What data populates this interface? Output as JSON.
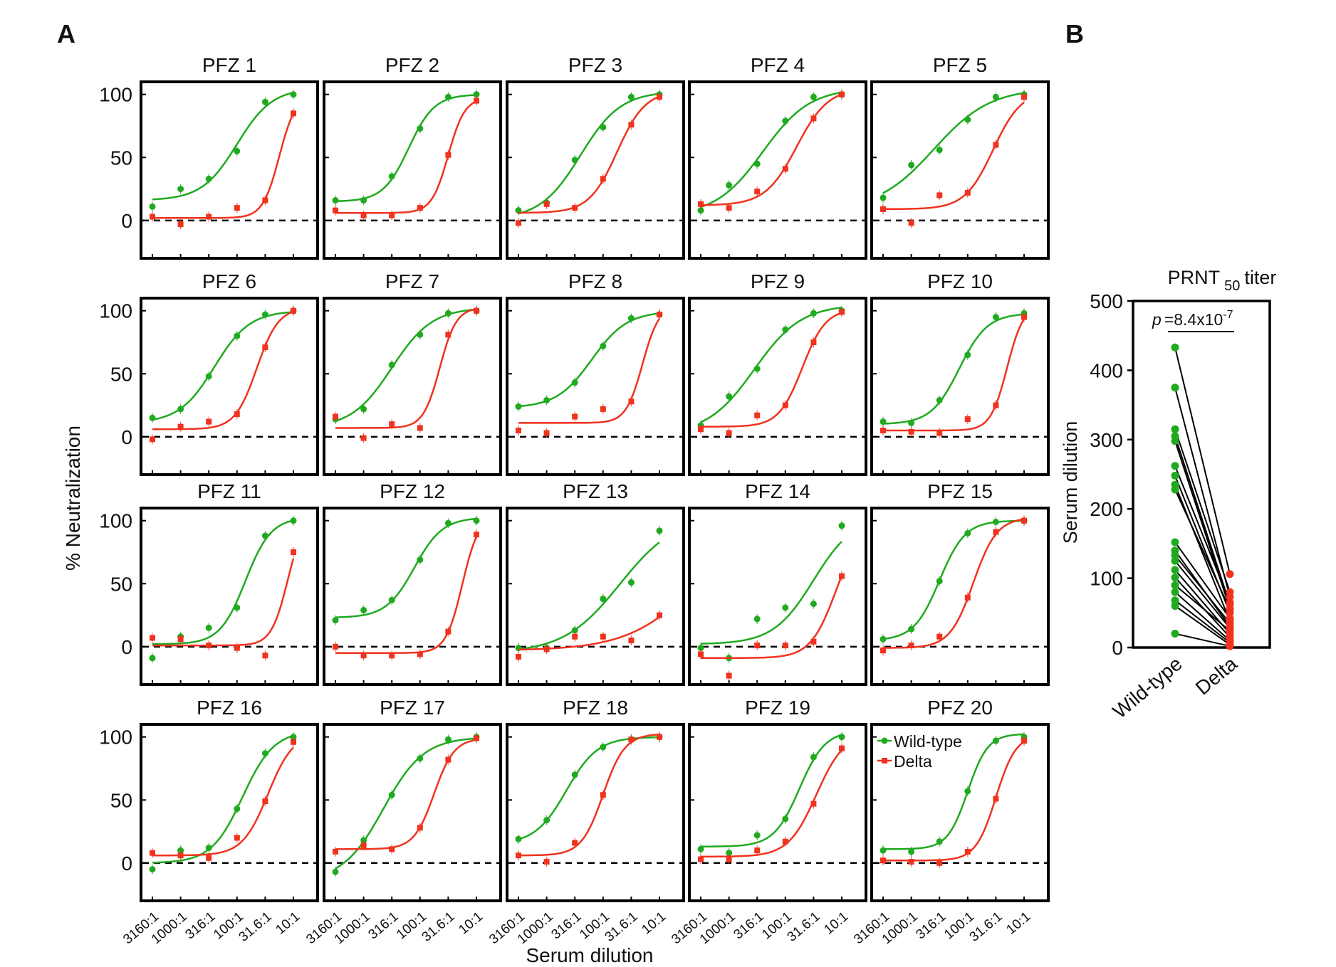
{
  "panel_labels": {
    "a": "A",
    "b": "B"
  },
  "colors": {
    "wild_type": "#1faa1f",
    "delta": "#f0321e",
    "axis": "#000000"
  },
  "legend": {
    "wild_type": "Wild-type",
    "delta": "Delta"
  },
  "chart_data": [
    {
      "type": "scatter",
      "panel": "A",
      "ylabel": "% Neutralization",
      "xlabel": "Serum dilution",
      "x_tick_labels": [
        "3160:1",
        "1000:1",
        "316:1",
        "100:1",
        "31.6:1",
        "10:1"
      ],
      "y_ticks": [
        0,
        50,
        100
      ],
      "ylim": [
        -30,
        110
      ],
      "x_scale": "log reciprocal dilution",
      "reference_line": {
        "y": 0,
        "style": "dashed"
      },
      "series_names": [
        "Wild-type",
        "Delta"
      ],
      "subplots": [
        {
          "title": "PFZ 1",
          "wild_type": [
            11,
            25,
            33,
            55,
            94,
            100
          ],
          "delta": [
            3,
            -3,
            3,
            10,
            16,
            85
          ]
        },
        {
          "title": "PFZ 2",
          "wild_type": [
            16,
            16,
            35,
            73,
            98,
            100
          ],
          "delta": [
            8,
            4,
            4,
            10,
            52,
            95
          ]
        },
        {
          "title": "PFZ 3",
          "wild_type": [
            8,
            14,
            48,
            74,
            98,
            100
          ],
          "delta": [
            -2,
            13,
            10,
            33,
            76,
            98
          ]
        },
        {
          "title": "PFZ 4",
          "wild_type": [
            8,
            28,
            45,
            79,
            98,
            100
          ],
          "delta": [
            13,
            10,
            23,
            41,
            81,
            100
          ]
        },
        {
          "title": "PFZ 5",
          "wild_type": [
            18,
            44,
            56,
            80,
            98,
            100
          ],
          "delta": [
            9,
            -2,
            20,
            22,
            60,
            98
          ]
        },
        {
          "title": "PFZ 6",
          "wild_type": [
            15,
            22,
            48,
            80,
            97,
            100
          ],
          "delta": [
            -2,
            8,
            12,
            18,
            71,
            100
          ]
        },
        {
          "title": "PFZ 7",
          "wild_type": [
            14,
            22,
            57,
            81,
            98,
            100
          ],
          "delta": [
            16,
            -1,
            10,
            7,
            81,
            100
          ]
        },
        {
          "title": "PFZ 8",
          "wild_type": [
            24,
            29,
            43,
            72,
            94,
            97
          ],
          "delta": [
            5,
            3,
            16,
            22,
            28,
            97
          ]
        },
        {
          "title": "PFZ 9",
          "wild_type": [
            9,
            32,
            54,
            85,
            98,
            100
          ],
          "delta": [
            6,
            3,
            17,
            25,
            75,
            99
          ]
        },
        {
          "title": "PFZ 10",
          "wild_type": [
            12,
            11,
            29,
            65,
            95,
            98
          ],
          "delta": [
            5,
            4,
            3,
            14,
            25,
            95
          ]
        },
        {
          "title": "PFZ 11",
          "wild_type": [
            -9,
            8,
            15,
            31,
            88,
            100
          ],
          "delta": [
            7,
            6,
            1,
            -1,
            -7,
            75
          ]
        },
        {
          "title": "PFZ 12",
          "wild_type": [
            21,
            29,
            37,
            69,
            98,
            100
          ],
          "delta": [
            0,
            -7,
            -7,
            -6,
            12,
            89
          ]
        },
        {
          "title": "PFZ 13",
          "wild_type": [
            -1,
            -1,
            13,
            38,
            51,
            92
          ],
          "delta": [
            -8,
            -2,
            8,
            8,
            5,
            25
          ]
        },
        {
          "title": "PFZ 14",
          "wild_type": [
            -1,
            -9,
            22,
            31,
            34,
            96
          ],
          "delta": [
            -6,
            -23,
            1,
            1,
            4,
            56
          ]
        },
        {
          "title": "PFZ 15",
          "wild_type": [
            6,
            14,
            52,
            90,
            99,
            100
          ],
          "delta": [
            -3,
            1,
            8,
            39,
            91,
            100
          ]
        },
        {
          "title": "PFZ 16",
          "wild_type": [
            -5,
            10,
            12,
            43,
            87,
            100
          ],
          "delta": [
            8,
            6,
            4,
            20,
            49,
            96
          ]
        },
        {
          "title": "PFZ 17",
          "wild_type": [
            -7,
            18,
            54,
            83,
            98,
            100
          ],
          "delta": [
            9,
            14,
            11,
            28,
            82,
            99
          ]
        },
        {
          "title": "PFZ 18",
          "wild_type": [
            19,
            34,
            70,
            92,
            98,
            100
          ],
          "delta": [
            6,
            1,
            16,
            54,
            98,
            100
          ]
        },
        {
          "title": "PFZ 19",
          "wild_type": [
            11,
            8,
            22,
            35,
            84,
            100
          ],
          "delta": [
            3,
            3,
            10,
            17,
            47,
            91
          ]
        },
        {
          "title": "PFZ 20",
          "wild_type": [
            10,
            9,
            17,
            57,
            97,
            100
          ],
          "delta": [
            2,
            1,
            0,
            9,
            51,
            97
          ]
        }
      ]
    },
    {
      "type": "scatter",
      "panel": "B",
      "title": "PRNT",
      "title_subscript": "50",
      "title_suffix": "titer",
      "ylabel": "Serum dilution",
      "categories": [
        "Wild-type",
        "Delta"
      ],
      "ylim": [
        0,
        500
      ],
      "y_ticks": [
        0,
        100,
        200,
        300,
        400,
        500
      ],
      "annotation": {
        "p_label": "p",
        "p_value": "=8.4x10",
        "p_exponent": "-7"
      },
      "pairs": [
        [
          433,
          106
        ],
        [
          375,
          73
        ],
        [
          315,
          80
        ],
        [
          305,
          62
        ],
        [
          298,
          56
        ],
        [
          262,
          65
        ],
        [
          248,
          50
        ],
        [
          235,
          38
        ],
        [
          228,
          55
        ],
        [
          152,
          42
        ],
        [
          140,
          30
        ],
        [
          133,
          35
        ],
        [
          125,
          28
        ],
        [
          112,
          20
        ],
        [
          101,
          15
        ],
        [
          90,
          24
        ],
        [
          80,
          10
        ],
        [
          68,
          7
        ],
        [
          60,
          4
        ],
        [
          20,
          2
        ]
      ]
    }
  ]
}
